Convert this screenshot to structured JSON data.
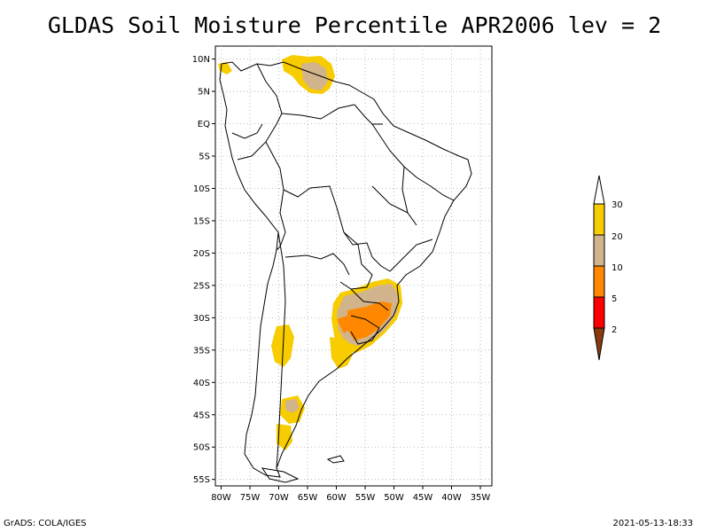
{
  "title": "GLDAS Soil Moisture Percentile APR2006 lev = 2",
  "map": {
    "lat_ticks": [
      "10N",
      "5N",
      "EQ",
      "5S",
      "10S",
      "15S",
      "20S",
      "25S",
      "30S",
      "35S",
      "40S",
      "45S",
      "50S",
      "55S"
    ],
    "lon_ticks": [
      "80W",
      "75W",
      "70W",
      "65W",
      "60W",
      "55W",
      "50W",
      "45W",
      "40W",
      "35W"
    ],
    "lon_range": [
      -81,
      -33
    ],
    "lat_range": [
      -56,
      12
    ],
    "grid": true
  },
  "legend": {
    "labels": [
      "30",
      "20",
      "10",
      "5",
      "2"
    ],
    "colors": {
      "white": "#ffffff",
      "yellow": "#f7cc00",
      "tan": "#d2b48c",
      "orange": "#ff8800",
      "red": "#ff0000",
      "brown": "#8b3a0f"
    }
  },
  "footer": {
    "left": "GrADS: COLA/IGES",
    "right": "2021-05-13-18:33"
  }
}
